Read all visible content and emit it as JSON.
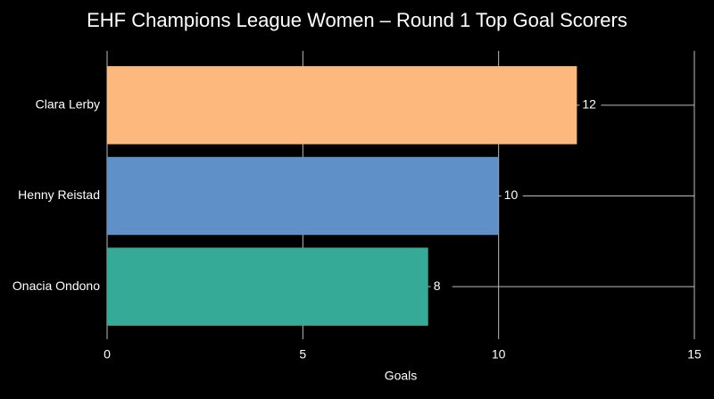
{
  "chart_data": {
    "type": "barh",
    "title": "EHF Champions League Women – Round 1 Top Goal Scorers",
    "x_label": "Goals",
    "categories": [
      "Clara Lerby",
      "Henny Reistad",
      "Onacia Ondono"
    ],
    "values": [
      12,
      10,
      8.2
    ],
    "value_labels": [
      "12",
      "10",
      "8"
    ],
    "colors": [
      "#fdb97d",
      "#5f90c8",
      "#35ab97"
    ],
    "xlim": [
      0,
      15
    ],
    "xticks": [
      0,
      5,
      10,
      15
    ],
    "grid": true
  }
}
